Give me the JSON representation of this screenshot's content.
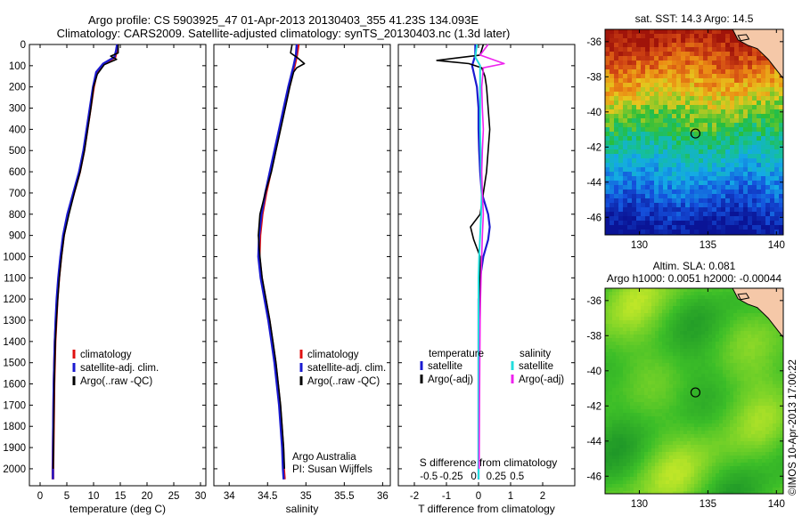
{
  "titles": {
    "line1": "Argo profile: CS 5903925_47 01-Apr-2013 20130403_355 41.23S 134.093E",
    "line2": "Climatology: CARS2009. Satellite-adjusted climatology: synTS_20130403.nc (1.3d later)"
  },
  "colors": {
    "climatology": "#e01010",
    "satellite": "#1a1ad0",
    "argo": "#000000",
    "salinity_satellite": "#22dddd",
    "salinity_argo": "#ee22ee",
    "land": "#f5c8a8"
  },
  "chart_data": [
    {
      "type": "line",
      "name": "temperature-profile",
      "xlabel": "temperature (deg C)",
      "xlim": [
        -2,
        31
      ],
      "ylim": [
        2080,
        0
      ],
      "xticks": [
        0,
        5,
        10,
        15,
        20,
        25,
        30
      ],
      "yticks": [
        0,
        100,
        200,
        300,
        400,
        500,
        600,
        700,
        800,
        900,
        1000,
        1100,
        1200,
        1300,
        1400,
        1500,
        1600,
        1700,
        1800,
        1900,
        2000
      ],
      "legend": [
        "climatology",
        "satellite-adj. clim.",
        "Argo(..raw -QC)"
      ],
      "legend_position": "lower-center",
      "series": [
        {
          "name": "climatology",
          "color_key": "climatology",
          "points": [
            [
              14.5,
              0
            ],
            [
              14.3,
              30
            ],
            [
              14.0,
              60
            ],
            [
              12.0,
              90
            ],
            [
              10.6,
              130
            ],
            [
              10.0,
              200
            ],
            [
              9.4,
              300
            ],
            [
              8.8,
              400
            ],
            [
              8.2,
              500
            ],
            [
              7.4,
              600
            ],
            [
              6.3,
              700
            ],
            [
              5.2,
              800
            ],
            [
              4.4,
              900
            ],
            [
              3.9,
              1000
            ],
            [
              3.5,
              1100
            ],
            [
              3.2,
              1200
            ],
            [
              3.0,
              1300
            ],
            [
              2.8,
              1400
            ],
            [
              2.7,
              1500
            ],
            [
              2.6,
              1600
            ],
            [
              2.55,
              1700
            ],
            [
              2.5,
              1800
            ],
            [
              2.45,
              1900
            ],
            [
              2.4,
              2000
            ],
            [
              2.4,
              2050
            ]
          ]
        },
        {
          "name": "satellite-adj. clim.",
          "color_key": "satellite",
          "points": [
            [
              14.4,
              0
            ],
            [
              14.2,
              30
            ],
            [
              13.9,
              60
            ],
            [
              11.8,
              90
            ],
            [
              10.5,
              130
            ],
            [
              9.9,
              200
            ],
            [
              9.3,
              300
            ],
            [
              8.7,
              400
            ],
            [
              8.1,
              500
            ],
            [
              7.3,
              600
            ],
            [
              6.2,
              700
            ],
            [
              5.1,
              800
            ],
            [
              4.3,
              900
            ],
            [
              3.8,
              1000
            ],
            [
              3.4,
              1100
            ],
            [
              3.1,
              1200
            ],
            [
              2.9,
              1300
            ],
            [
              2.75,
              1400
            ],
            [
              2.65,
              1500
            ],
            [
              2.55,
              1600
            ],
            [
              2.5,
              1700
            ],
            [
              2.45,
              1800
            ],
            [
              2.42,
              1900
            ],
            [
              2.4,
              2000
            ],
            [
              2.4,
              2050
            ]
          ]
        },
        {
          "name": "Argo(..raw -QC)",
          "color_key": "argo",
          "points": [
            [
              14.6,
              0
            ],
            [
              14.6,
              40
            ],
            [
              13.2,
              55
            ],
            [
              14.3,
              70
            ],
            [
              12.0,
              95
            ],
            [
              10.7,
              140
            ],
            [
              10.0,
              200
            ],
            [
              9.5,
              300
            ],
            [
              8.9,
              400
            ],
            [
              8.3,
              500
            ],
            [
              7.5,
              600
            ],
            [
              6.4,
              700
            ],
            [
              5.4,
              800
            ],
            [
              4.5,
              900
            ],
            [
              4.0,
              1000
            ],
            [
              3.6,
              1100
            ],
            [
              3.3,
              1200
            ],
            [
              3.05,
              1300
            ],
            [
              2.85,
              1400
            ],
            [
              2.75,
              1500
            ],
            [
              2.65,
              1600
            ],
            [
              2.6,
              1700
            ],
            [
              2.55,
              1800
            ],
            [
              2.5,
              1900
            ],
            [
              2.45,
              2000
            ]
          ]
        }
      ]
    },
    {
      "type": "line",
      "name": "salinity-profile",
      "xlabel": "salinity",
      "xlim": [
        33.8,
        36.1
      ],
      "ylim": [
        2080,
        0
      ],
      "xticks": [
        34,
        34.5,
        35,
        35.5,
        36
      ],
      "legend": [
        "climatology",
        "satellite-adj. clim.",
        "Argo(..raw -QC)"
      ],
      "legend_position": "lower-center",
      "annotation": [
        "Argo Australia",
        "PI: Susan Wijffels"
      ],
      "series": [
        {
          "name": "climatology",
          "color_key": "climatology",
          "points": [
            [
              34.9,
              0
            ],
            [
              34.88,
              50
            ],
            [
              34.85,
              100
            ],
            [
              34.78,
              200
            ],
            [
              34.72,
              300
            ],
            [
              34.66,
              400
            ],
            [
              34.6,
              500
            ],
            [
              34.54,
              600
            ],
            [
              34.48,
              700
            ],
            [
              34.43,
              800
            ],
            [
              34.4,
              900
            ],
            [
              34.39,
              1000
            ],
            [
              34.42,
              1100
            ],
            [
              34.47,
              1200
            ],
            [
              34.52,
              1300
            ],
            [
              34.56,
              1400
            ],
            [
              34.6,
              1500
            ],
            [
              34.63,
              1600
            ],
            [
              34.66,
              1700
            ],
            [
              34.68,
              1800
            ],
            [
              34.7,
              1900
            ],
            [
              34.71,
              2000
            ],
            [
              34.72,
              2050
            ]
          ]
        },
        {
          "name": "satellite-adj. clim.",
          "color_key": "satellite",
          "points": [
            [
              34.88,
              0
            ],
            [
              34.87,
              50
            ],
            [
              34.84,
              100
            ],
            [
              34.77,
              200
            ],
            [
              34.71,
              300
            ],
            [
              34.65,
              400
            ],
            [
              34.59,
              500
            ],
            [
              34.53,
              600
            ],
            [
              34.47,
              700
            ],
            [
              34.42,
              800
            ],
            [
              34.39,
              900
            ],
            [
              34.38,
              1000
            ],
            [
              34.41,
              1100
            ],
            [
              34.46,
              1200
            ],
            [
              34.51,
              1300
            ],
            [
              34.55,
              1400
            ],
            [
              34.59,
              1500
            ],
            [
              34.62,
              1600
            ],
            [
              34.65,
              1700
            ],
            [
              34.67,
              1800
            ],
            [
              34.69,
              1900
            ],
            [
              34.7,
              2000
            ],
            [
              34.71,
              2050
            ]
          ]
        },
        {
          "name": "Argo(..raw -QC)",
          "color_key": "argo",
          "points": [
            [
              34.82,
              0
            ],
            [
              34.8,
              40
            ],
            [
              34.88,
              60
            ],
            [
              34.98,
              90
            ],
            [
              34.88,
              110
            ],
            [
              34.84,
              130
            ],
            [
              34.79,
              200
            ],
            [
              34.73,
              300
            ],
            [
              34.67,
              400
            ],
            [
              34.61,
              500
            ],
            [
              34.55,
              600
            ],
            [
              34.47,
              700
            ],
            [
              34.4,
              800
            ],
            [
              34.38,
              900
            ],
            [
              34.4,
              1000
            ],
            [
              34.43,
              1100
            ],
            [
              34.48,
              1200
            ],
            [
              34.53,
              1300
            ],
            [
              34.57,
              1400
            ],
            [
              34.61,
              1500
            ],
            [
              34.64,
              1600
            ],
            [
              34.67,
              1700
            ],
            [
              34.69,
              1800
            ],
            [
              34.71,
              1900
            ],
            [
              34.72,
              2000
            ]
          ]
        }
      ]
    },
    {
      "type": "line",
      "name": "difference-profile",
      "xlabel": "T difference from climatology",
      "top_label": "S difference from climatology",
      "xlim_T": [
        -2.5,
        3.0
      ],
      "xticks_T": [
        -2,
        -1,
        0,
        1,
        2
      ],
      "xticks_S": [
        "-0.5",
        "-0.25",
        "0",
        "0.25",
        "0.5"
      ],
      "xticks_S_at_T": [
        -1.55,
        -0.85,
        -0.15,
        0.55,
        1.2
      ],
      "ylim": [
        2080,
        0
      ],
      "legend_temperature_title": "temperature",
      "legend_salinity_title": "salinity",
      "legend": [
        "satellite",
        "Argo(-adj)",
        "satellite",
        "Argo(-adj)"
      ],
      "series": [
        {
          "name": "temperature satellite",
          "color_key": "satellite",
          "points": [
            [
              -0.1,
              0
            ],
            [
              -0.1,
              50
            ],
            [
              -0.2,
              100
            ],
            [
              -0.05,
              200
            ],
            [
              0,
              300
            ],
            [
              0,
              400
            ],
            [
              0.02,
              500
            ],
            [
              0.05,
              600
            ],
            [
              0.1,
              700
            ],
            [
              0.3,
              800
            ],
            [
              0.35,
              860
            ],
            [
              0.3,
              920
            ],
            [
              0.15,
              1000
            ],
            [
              0.05,
              1100
            ],
            [
              0,
              1200
            ],
            [
              0,
              1300
            ],
            [
              0,
              1400
            ],
            [
              0,
              1500
            ],
            [
              0,
              1700
            ],
            [
              0,
              2050
            ]
          ]
        },
        {
          "name": "temperature Argo(-adj)",
          "color_key": "argo",
          "points": [
            [
              0.15,
              0
            ],
            [
              0.05,
              50
            ],
            [
              -1.3,
              75
            ],
            [
              -0.3,
              90
            ],
            [
              0.1,
              110
            ],
            [
              0.2,
              150
            ],
            [
              0.25,
              200
            ],
            [
              0.3,
              300
            ],
            [
              0.35,
              400
            ],
            [
              0.3,
              500
            ],
            [
              0.25,
              600
            ],
            [
              0.15,
              700
            ],
            [
              0.05,
              800
            ],
            [
              -0.25,
              860
            ],
            [
              -0.15,
              920
            ],
            [
              0.05,
              1000
            ],
            [
              0.05,
              1100
            ],
            [
              0.02,
              1300
            ],
            [
              0.02,
              1500
            ],
            [
              0.01,
              1800
            ],
            [
              0.01,
              2000
            ]
          ]
        },
        {
          "name": "salinity satellite",
          "color_key": "salinity_satellite",
          "points": [
            [
              -0.05,
              0
            ],
            [
              -0.1,
              60
            ],
            [
              0.05,
              100
            ],
            [
              0.05,
              200
            ],
            [
              0.05,
              400
            ],
            [
              0.08,
              600
            ],
            [
              0.1,
              700
            ],
            [
              0.08,
              800
            ],
            [
              0.05,
              900
            ],
            [
              0.02,
              1000
            ],
            [
              0,
              1100
            ],
            [
              0,
              1200
            ],
            [
              0,
              1400
            ],
            [
              0,
              2050
            ]
          ]
        },
        {
          "name": "salinity Argo(-adj)",
          "color_key": "salinity_argo",
          "points": [
            [
              0.3,
              0
            ],
            [
              0.05,
              50
            ],
            [
              0.8,
              90
            ],
            [
              0.15,
              110
            ],
            [
              0.1,
              200
            ],
            [
              0.12,
              300
            ],
            [
              0.15,
              400
            ],
            [
              0.12,
              500
            ],
            [
              0.1,
              600
            ],
            [
              0.12,
              700
            ],
            [
              0.15,
              800
            ],
            [
              0.12,
              900
            ],
            [
              0.1,
              1000
            ],
            [
              0.08,
              1100
            ],
            [
              0.06,
              1200
            ],
            [
              0.05,
              1300
            ],
            [
              0.04,
              1500
            ],
            [
              0.03,
              1700
            ],
            [
              0.02,
              2000
            ]
          ]
        }
      ]
    },
    {
      "type": "heatmap",
      "name": "sst-map",
      "title": "sat. SST: 14.3 Argo: 14.5",
      "xlim": [
        127.5,
        140.5
      ],
      "ylim": [
        -47,
        -35.3
      ],
      "xticks": [
        130,
        135,
        140
      ],
      "yticks": [
        -36,
        -38,
        -40,
        -42,
        -44,
        -46
      ],
      "marker": [
        134.093,
        -41.23
      ]
    },
    {
      "type": "heatmap",
      "name": "sla-map",
      "title_line1": "Altim. SLA: 0.081",
      "title_line2": "Argo h1000: 0.0051 h2000: -0.00044",
      "side_label": "©IMOS 10-Apr-2013 17:00:22",
      "xlim": [
        127.5,
        140.5
      ],
      "ylim": [
        -47,
        -35.3
      ],
      "xticks": [
        130,
        135,
        140
      ],
      "yticks": [
        -36,
        -38,
        -40,
        -42,
        -44,
        -46
      ],
      "marker": [
        134.093,
        -41.23
      ]
    }
  ]
}
